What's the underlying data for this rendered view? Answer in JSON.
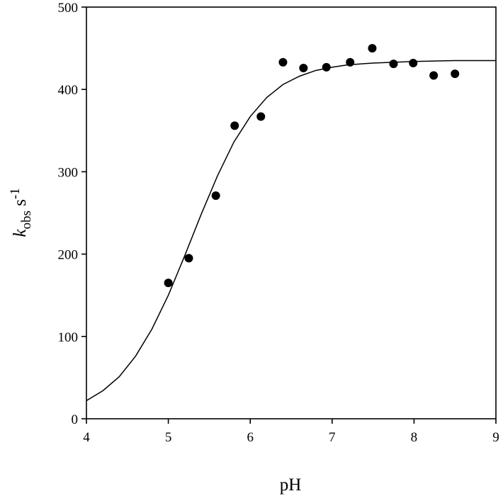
{
  "chart_data": {
    "type": "scatter",
    "xlabel": "pH",
    "ylabel": {
      "symbol": "k",
      "subscript": "obs",
      "unit": "s",
      "exponent": "-1"
    },
    "xlim": [
      4,
      9
    ],
    "ylim": [
      0,
      500
    ],
    "x_ticks": [
      4,
      5,
      6,
      7,
      8,
      9
    ],
    "y_ticks": [
      0,
      100,
      200,
      300,
      400,
      500
    ],
    "grid": false,
    "legend": "none",
    "series": [
      {
        "type": "scatter",
        "marker": "filled-circle",
        "color": "#000000",
        "points": [
          {
            "x": 5.0,
            "y": 165
          },
          {
            "x": 5.25,
            "y": 195
          },
          {
            "x": 5.58,
            "y": 271
          },
          {
            "x": 5.81,
            "y": 356
          },
          {
            "x": 6.13,
            "y": 367
          },
          {
            "x": 6.4,
            "y": 433
          },
          {
            "x": 6.65,
            "y": 426
          },
          {
            "x": 6.93,
            "y": 427
          },
          {
            "x": 7.22,
            "y": 433
          },
          {
            "x": 7.49,
            "y": 450
          },
          {
            "x": 7.75,
            "y": 431
          },
          {
            "x": 7.99,
            "y": 432
          },
          {
            "x": 8.24,
            "y": 417
          },
          {
            "x": 8.5,
            "y": 419
          }
        ]
      },
      {
        "type": "line",
        "color": "#000000",
        "points": [
          {
            "x": 4.0,
            "y": 22
          },
          {
            "x": 4.2,
            "y": 34
          },
          {
            "x": 4.4,
            "y": 51
          },
          {
            "x": 4.6,
            "y": 76
          },
          {
            "x": 4.8,
            "y": 109
          },
          {
            "x": 5.0,
            "y": 150
          },
          {
            "x": 5.2,
            "y": 198
          },
          {
            "x": 5.4,
            "y": 248
          },
          {
            "x": 5.6,
            "y": 295
          },
          {
            "x": 5.8,
            "y": 336
          },
          {
            "x": 6.0,
            "y": 367
          },
          {
            "x": 6.2,
            "y": 390
          },
          {
            "x": 6.4,
            "y": 406
          },
          {
            "x": 6.6,
            "y": 416
          },
          {
            "x": 6.8,
            "y": 423
          },
          {
            "x": 7.0,
            "y": 427
          },
          {
            "x": 7.2,
            "y": 430
          },
          {
            "x": 7.5,
            "y": 432
          },
          {
            "x": 8.0,
            "y": 434
          },
          {
            "x": 8.5,
            "y": 435
          },
          {
            "x": 9.0,
            "y": 435
          }
        ]
      }
    ]
  }
}
